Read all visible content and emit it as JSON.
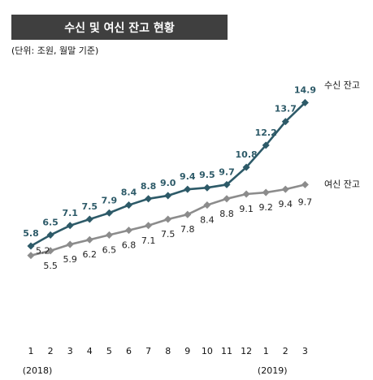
{
  "chart_data": {
    "type": "line",
    "title": "수신 및 여신 잔고 현황",
    "subtitle": "(단위: 조원, 월말 기준)",
    "categories": [
      "1",
      "2",
      "3",
      "4",
      "5",
      "6",
      "7",
      "8",
      "9",
      "10",
      "11",
      "12",
      "1",
      "2",
      "3"
    ],
    "year_labels": [
      {
        "text": "(2018)",
        "index": 0
      },
      {
        "text": "(2019)",
        "index": 12
      }
    ],
    "series": [
      {
        "name": "수신 잔고",
        "color": "#2d5a68",
        "values": [
          5.8,
          6.5,
          7.1,
          7.5,
          7.9,
          8.4,
          8.8,
          9.0,
          9.4,
          9.5,
          9.7,
          10.8,
          12.2,
          13.7,
          14.9
        ]
      },
      {
        "name": "여신 잔고",
        "color": "#8c8c8c",
        "values": [
          5.2,
          5.5,
          5.9,
          6.2,
          6.5,
          6.8,
          7.1,
          7.5,
          7.8,
          8.4,
          8.8,
          9.1,
          9.2,
          9.4,
          9.7
        ]
      }
    ],
    "grid": false
  }
}
